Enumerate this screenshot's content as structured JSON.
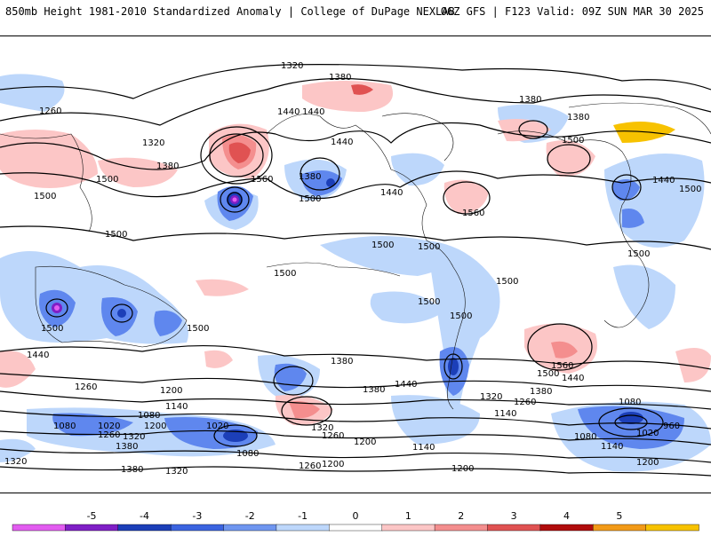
{
  "header": {
    "title_left": "850mb Height 1981-2010 Standardized Anomaly | College of DuPage NEXLAB",
    "title_right": "06Z GFS | F123 Valid: 09Z SUN MAR 30 2025"
  },
  "map": {
    "contour_labels": [
      "1320",
      "1380",
      "1260",
      "1440",
      "1440",
      "1380",
      "1380",
      "1320",
      "1500",
      "1380",
      "1500",
      "1560",
      "1500",
      "1440",
      "1500",
      "1440",
      "1560",
      "1380",
      "1500",
      "1440",
      "1500",
      "1500",
      "1500",
      "1500",
      "1500",
      "1500",
      "1500",
      "1500",
      "1500",
      "1440",
      "1380",
      "1260",
      "1200",
      "1140",
      "1080",
      "1020",
      "1260",
      "1320",
      "1200",
      "1380",
      "1020",
      "1080",
      "1320",
      "1260",
      "1200",
      "1080",
      "1320",
      "1380",
      "1260",
      "1200",
      "1320",
      "1140",
      "1200",
      "1560",
      "1500",
      "1440",
      "1380",
      "1320",
      "1260",
      "1140",
      "1080",
      "1020",
      "960",
      "1080",
      "1140",
      "1200",
      "1440",
      "1500",
      "1380"
    ]
  },
  "colorbar": {
    "ticks": [
      "-5",
      "-4",
      "-3",
      "-2",
      "-1",
      "0",
      "1",
      "2",
      "3",
      "4",
      "5"
    ],
    "colors": [
      "#e25cf0",
      "#7f1fc6",
      "#1c3fb8",
      "#3b64e0",
      "#6f96f0",
      "#bdd7fb",
      "#ffffff",
      "#fcc6c6",
      "#f48e8e",
      "#e05252",
      "#b00c0c",
      "#f29a18",
      "#f7c200"
    ]
  }
}
